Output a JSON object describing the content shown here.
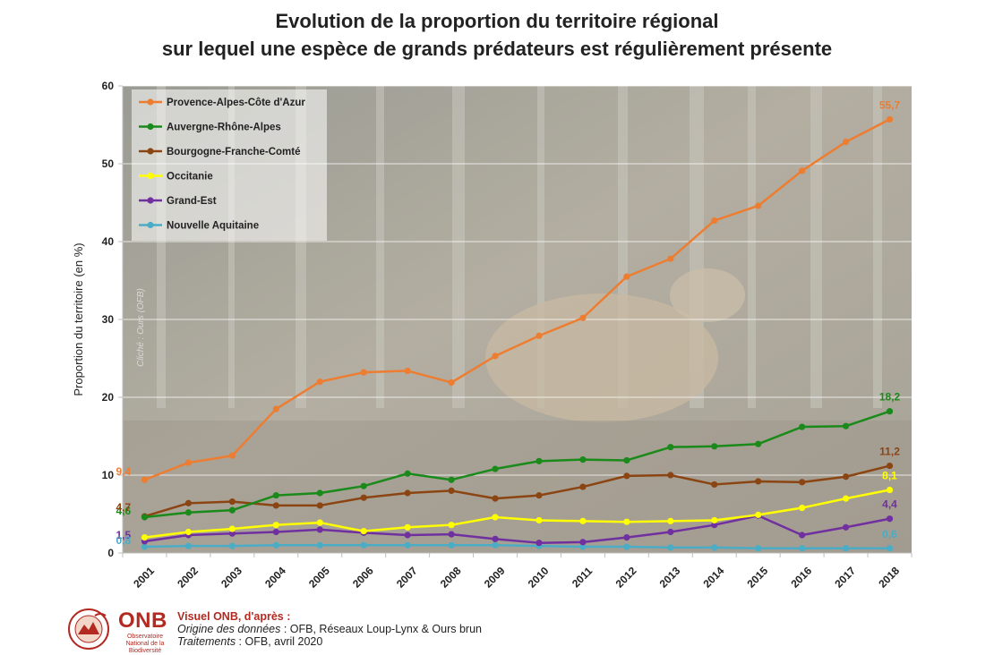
{
  "title": {
    "line1": "Evolution de la proportion du territoire régional",
    "line2": "sur lequel une espèce de grands prédateurs est régulièrement présente"
  },
  "photo_credit": "Cliché : Ours (OFB)",
  "footer": {
    "logo_text": "ONB",
    "logo_subtitle": "Observatoire National de la Biodiversité",
    "heading": "Visuel ONB, d'après :",
    "source_label": "Origine des données",
    "source_value": " : OFB, Réseaux Loup-Lynx & Ours brun",
    "treatment_label": "Traitements",
    "treatment_value": " : OFB, avril 2020"
  },
  "colors": {
    "grid": "#ffffff",
    "axis": "#bfbfbf"
  },
  "chart_data": {
    "type": "line",
    "title": "",
    "xlabel": "",
    "ylabel": "Proportion du territoire (en %)",
    "ylim": [
      0,
      60
    ],
    "yticks": [
      0,
      10,
      20,
      30,
      40,
      50,
      60
    ],
    "grid": true,
    "legend_position": "top-left",
    "x": [
      "2001",
      "2002",
      "2003",
      "2004",
      "2005",
      "2006",
      "2007",
      "2008",
      "2009",
      "2010",
      "2011",
      "2012",
      "2013",
      "2014",
      "2015",
      "2016",
      "2017",
      "2018"
    ],
    "series": [
      {
        "name": "Provence-Alpes-Côte d'Azur",
        "color": "#ed7d31",
        "values": [
          9.4,
          11.6,
          12.5,
          18.5,
          22.0,
          23.2,
          23.4,
          21.9,
          25.3,
          27.9,
          30.2,
          35.5,
          37.8,
          42.7,
          44.6,
          49.1,
          52.8,
          55.7
        ],
        "labels": [
          {
            "index": 0,
            "text": "9,4"
          },
          {
            "index": 17,
            "text": "55,7"
          }
        ]
      },
      {
        "name": "Auvergne-Rhône-Alpes",
        "color": "#1a8a1a",
        "values": [
          4.6,
          5.2,
          5.5,
          7.4,
          7.7,
          8.6,
          10.2,
          9.4,
          10.8,
          11.8,
          12.0,
          11.9,
          13.6,
          13.7,
          14.0,
          16.2,
          16.3,
          18.2
        ],
        "labels": [
          {
            "index": 0,
            "text": "4,6"
          },
          {
            "index": 17,
            "text": "18,2"
          }
        ]
      },
      {
        "name": "Bourgogne-Franche-Comté",
        "color": "#8b4513",
        "values": [
          4.7,
          6.4,
          6.6,
          6.1,
          6.1,
          7.1,
          7.7,
          8.0,
          7.0,
          7.4,
          8.5,
          9.9,
          10.0,
          8.8,
          9.2,
          9.1,
          9.8,
          11.2
        ],
        "labels": [
          {
            "index": 0,
            "text": "4,7"
          },
          {
            "index": 17,
            "text": "11,2"
          }
        ]
      },
      {
        "name": "Occitanie",
        "color": "#ffff00",
        "values": [
          2.0,
          2.7,
          3.1,
          3.6,
          3.9,
          2.8,
          3.3,
          3.6,
          4.6,
          4.2,
          4.1,
          4.0,
          4.1,
          4.2,
          4.9,
          5.8,
          7.0,
          8.1
        ],
        "labels": [
          {
            "index": 17,
            "text": "8,1"
          }
        ]
      },
      {
        "name": "Grand-Est",
        "color": "#7030a0",
        "values": [
          1.5,
          2.3,
          2.5,
          2.7,
          3.0,
          2.6,
          2.3,
          2.4,
          1.8,
          1.3,
          1.4,
          2.0,
          2.7,
          3.6,
          4.8,
          2.3,
          3.3,
          4.4
        ],
        "labels": [
          {
            "index": 0,
            "text": "1,5"
          },
          {
            "index": 17,
            "text": "4,4"
          }
        ]
      },
      {
        "name": "Nouvelle Aquitaine",
        "color": "#4bacc6",
        "values": [
          0.8,
          0.9,
          0.9,
          1.0,
          1.0,
          1.0,
          1.0,
          1.0,
          1.0,
          0.9,
          0.8,
          0.8,
          0.7,
          0.7,
          0.6,
          0.6,
          0.6,
          0.6
        ],
        "labels": [
          {
            "index": 0,
            "text": "0,8"
          },
          {
            "index": 17,
            "text": "0,6"
          }
        ]
      }
    ]
  }
}
